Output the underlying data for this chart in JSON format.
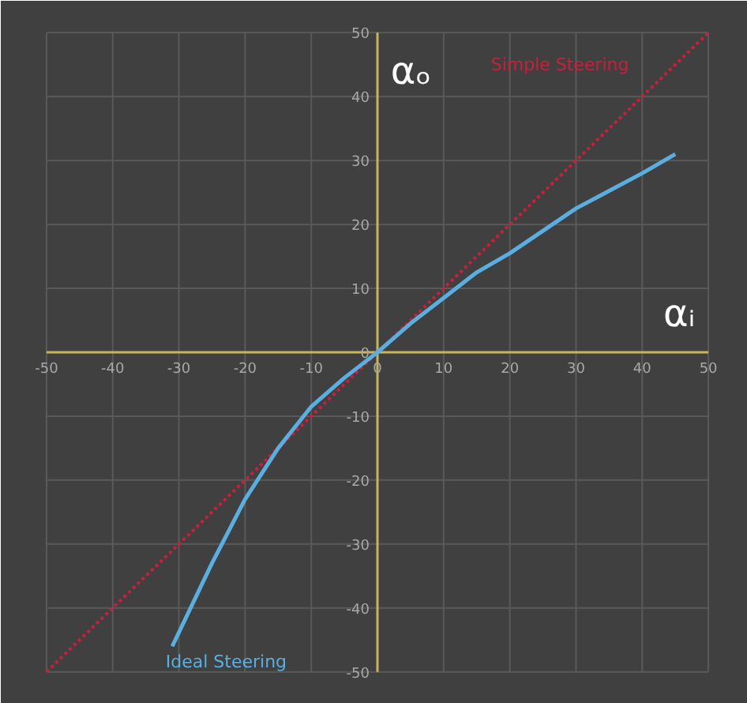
{
  "chart_data": {
    "type": "line",
    "xlabel": "αᵢ",
    "ylabel": "αₒ",
    "xlim": [
      -50,
      50
    ],
    "ylim": [
      -50,
      50
    ],
    "xticks": [
      -50,
      -40,
      -30,
      -20,
      -10,
      0,
      10,
      20,
      30,
      40,
      50
    ],
    "yticks": [
      -50,
      -40,
      -30,
      -20,
      -10,
      0,
      10,
      20,
      30,
      40,
      50
    ],
    "grid": true,
    "marker": "none",
    "series": [
      {
        "name": "Simple Steering",
        "color": "#c8203c",
        "line_style": "dotted",
        "x": [
          -50,
          50
        ],
        "values": [
          -50,
          50
        ]
      },
      {
        "name": "Ideal Steering",
        "color": "#5aaee0",
        "line_style": "solid",
        "x": [
          -31,
          -25,
          -20,
          -15,
          -10,
          -5,
          0,
          5,
          10,
          15,
          20,
          30,
          40,
          45
        ],
        "values": [
          -46,
          -33,
          -23,
          -15,
          -8.5,
          -4,
          0,
          4.5,
          8.5,
          12.5,
          15.5,
          22.5,
          28,
          31
        ]
      }
    ]
  }
}
